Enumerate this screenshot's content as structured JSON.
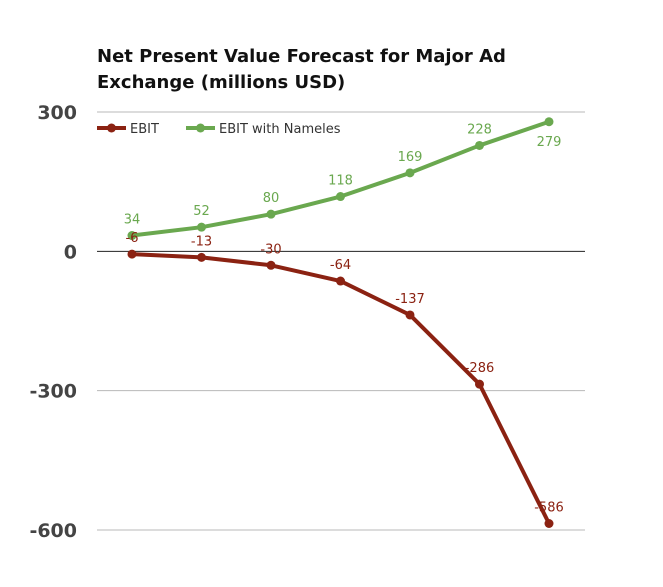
{
  "chart_data": {
    "type": "line",
    "title": "Net Present Value Forecast for Major Ad Exchange (millions USD)",
    "xlabel": "",
    "ylabel": "",
    "ylim": [
      -600,
      300
    ],
    "yticks": [
      "300",
      "0",
      "-300",
      "-600"
    ],
    "ytick_values": [
      300,
      0,
      -300,
      -600
    ],
    "x": [
      1,
      2,
      3,
      4,
      5,
      6,
      7
    ],
    "grid": true,
    "legend_position": "top-left",
    "series": [
      {
        "name": "EBIT",
        "color": "#8b2212",
        "values": [
          -6,
          -13,
          -30,
          -64,
          -137,
          -286,
          -586
        ],
        "labels": [
          "-6",
          "-13",
          "-30",
          "-64",
          "-137",
          "-286",
          "-586"
        ]
      },
      {
        "name": "EBIT with Nameles",
        "color": "#6aa84f",
        "values": [
          34,
          52,
          80,
          118,
          169,
          228,
          279
        ],
        "labels": [
          "34",
          "52",
          "80",
          "118",
          "169",
          "228",
          "279"
        ]
      }
    ]
  }
}
